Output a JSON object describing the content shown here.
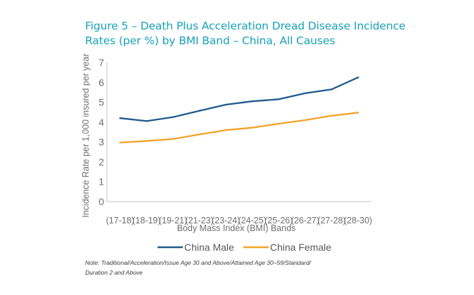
{
  "figure": {
    "title_line1": "Figure 5 – Death Plus Acceleration Dread Disease Incidence",
    "title_line2": "Rates (per %) by BMI Band – China, All Causes",
    "note_line1": "Note: Traditional/Acceleration/Issue Age 30 and Above/Attained Age 30–59/Standard/",
    "note_line2": "Duration 2 and Above"
  },
  "colors": {
    "male": "#1f5a8c",
    "female": "#f2a32a",
    "axis": "#bfbfbf",
    "text": "#6e6e6e"
  },
  "chart_data": {
    "type": "line",
    "categories": [
      "(17-18)",
      "(18-19)",
      "(19-21)",
      "(21-23)",
      "(23-24)",
      "(24-25)",
      "(25-26)",
      "(26-27)",
      "(27-28)",
      "(28-30)"
    ],
    "series": [
      {
        "name": "China Male",
        "values": [
          4.2,
          4.05,
          4.25,
          4.57,
          4.88,
          5.05,
          5.15,
          5.45,
          5.65,
          6.25
        ]
      },
      {
        "name": "China Female",
        "values": [
          2.97,
          3.05,
          3.15,
          3.38,
          3.6,
          3.72,
          3.92,
          4.1,
          4.32,
          4.48
        ]
      }
    ],
    "xlabel": "Body Mass Index (BMI) Bands",
    "ylabel": "Incidence Rate per 1,000 insured per year",
    "yticks": [
      "0",
      "1",
      "2",
      "3",
      "4",
      "5",
      "6",
      "7"
    ],
    "ylim": [
      0,
      7
    ],
    "grid": false,
    "legend": "bottom-center"
  }
}
